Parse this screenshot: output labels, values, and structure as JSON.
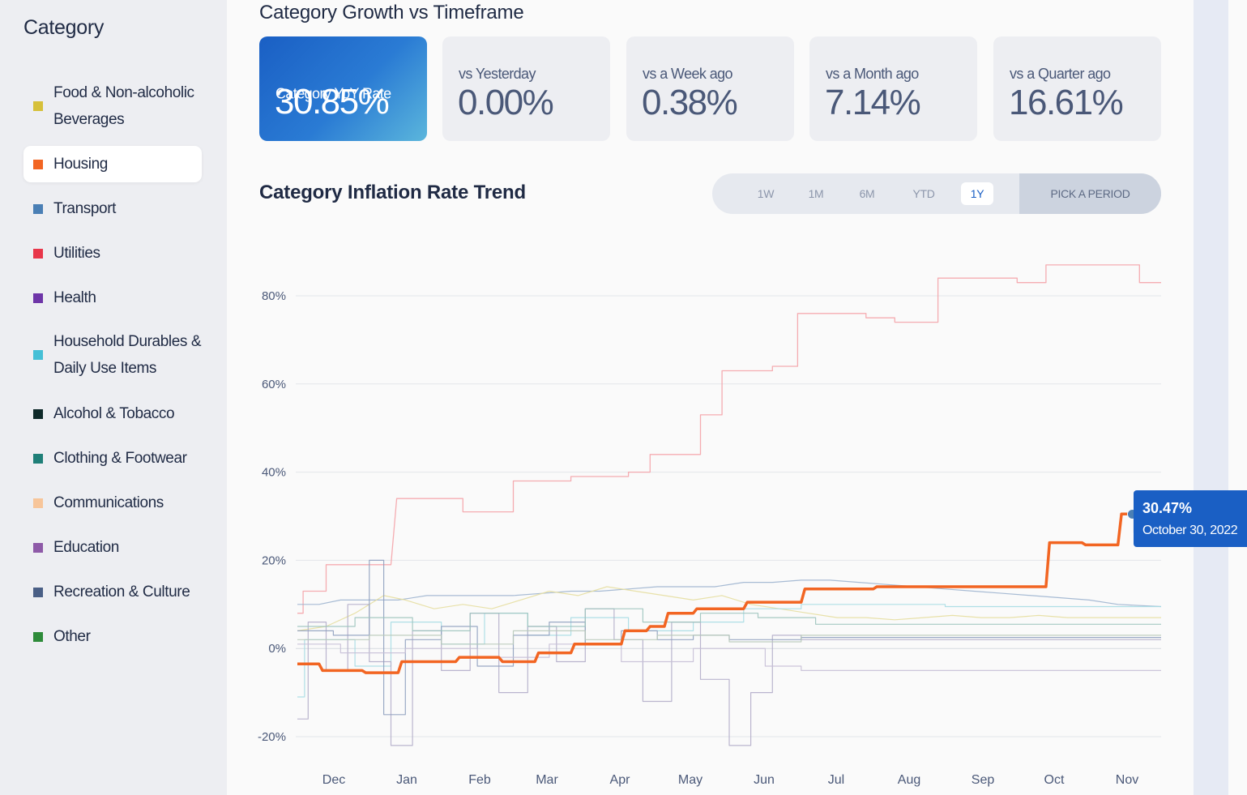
{
  "sidebar": {
    "title": "Category",
    "items": [
      {
        "label_line1": "Food & Non-alcoholic",
        "label_line2": "Beverages",
        "color": "#d6c03a"
      },
      {
        "label_line1": "Housing",
        "color": "#f26522",
        "active": true
      },
      {
        "label_line1": "Transport",
        "color": "#4a7fb5"
      },
      {
        "label_line1": "Utilities",
        "color": "#e8364a"
      },
      {
        "label_line1": "Health",
        "color": "#6e35a8"
      },
      {
        "label_line1": "Household Durables &",
        "label_line2": "Daily Use Items",
        "color": "#45bfd6"
      },
      {
        "label_line1": "Alcohol & Tobacco",
        "color": "#0f2a2a"
      },
      {
        "label_line1": "Clothing & Footwear",
        "color": "#1f7f78"
      },
      {
        "label_line1": "Communications",
        "color": "#f7c59a"
      },
      {
        "label_line1": "Education",
        "color": "#8e5aa8"
      },
      {
        "label_line1": "Recreation & Culture",
        "color": "#4a5f86"
      },
      {
        "label_line1": "Other",
        "color": "#2e8b3a"
      }
    ]
  },
  "header": {
    "title": "Category Growth vs Timeframe"
  },
  "cards": [
    {
      "label": "Category YoY Rate",
      "value": "30.85%"
    },
    {
      "label": "vs Yesterday",
      "value": "0.00%"
    },
    {
      "label": "vs a Week ago",
      "value": "0.38%"
    },
    {
      "label": "vs a Month ago",
      "value": "7.14%"
    },
    {
      "label": "vs a Quarter ago",
      "value": "16.61%"
    }
  ],
  "trend": {
    "title": "Category Inflation Rate Trend",
    "periods": [
      "1W",
      "1M",
      "6M",
      "YTD",
      "1Y"
    ],
    "selected_period": "1Y",
    "pick_label": "PICK A PERIOD"
  },
  "tooltip": {
    "value": "30.47%",
    "date": "October 30, 2022"
  },
  "colors": {
    "accent": "#1a5fc4",
    "housing": "#f26522",
    "utilities_line": "#f4a3a8"
  },
  "chart_data": {
    "type": "line",
    "title": "Category Inflation Rate Trend",
    "xlabel": "",
    "ylabel": "",
    "ylim": [
      -22,
      86
    ],
    "yticks": [
      -20,
      0,
      20,
      40,
      60,
      80
    ],
    "ytick_labels": [
      "-20%",
      "0%",
      "20%",
      "40%",
      "60%",
      "80%"
    ],
    "x_months": [
      "Dec",
      "Jan",
      "Feb",
      "Mar",
      "Apr",
      "May",
      "Jun",
      "Jul",
      "Aug",
      "Sep",
      "Oct",
      "Nov"
    ],
    "x_range": [
      0,
      12
    ],
    "series": [
      {
        "name": "Utilities",
        "color": "#f4a3a8",
        "width": 1.3,
        "x": [
          0,
          0.08,
          0.08,
          0.4,
          0.4,
          1.3,
          1.3,
          1.38,
          1.38,
          2.3,
          2.3,
          3.0,
          3.0,
          3.8,
          3.8,
          4.6,
          4.6,
          4.9,
          4.9,
          5.6,
          5.6,
          5.9,
          5.9,
          6.6,
          6.6,
          6.95,
          6.95,
          7.2,
          7.2,
          7.9,
          7.9,
          8.3,
          8.3,
          8.9,
          8.9,
          10.0,
          10.0,
          10.4,
          10.4,
          11.0,
          11.0,
          11.7,
          11.7,
          12.0
        ],
        "y": [
          8,
          8,
          13,
          13,
          19,
          19,
          19,
          34,
          34,
          34,
          31,
          31,
          38,
          38,
          39,
          39,
          40,
          40,
          44,
          44,
          53,
          53,
          63,
          63,
          64,
          64,
          76,
          76,
          76,
          76,
          75,
          75,
          74,
          74,
          84,
          84,
          83,
          83,
          87,
          87,
          87,
          87,
          83,
          83
        ]
      },
      {
        "name": "Housing",
        "color": "#f26522",
        "width": 3.5,
        "x": [
          0,
          0.3,
          0.35,
          0.9,
          0.95,
          1.4,
          1.45,
          2.2,
          2.25,
          2.8,
          2.85,
          3.3,
          3.35,
          3.8,
          3.85,
          4.5,
          4.55,
          4.85,
          4.9,
          5.1,
          5.15,
          5.5,
          5.55,
          6.2,
          6.25,
          7.0,
          7.05,
          8.0,
          8.05,
          9.0,
          9.05,
          10.4,
          10.45,
          10.9,
          10.95,
          11.4,
          11.45,
          11.7,
          11.75,
          12.0
        ],
        "y": [
          -3.5,
          -3.5,
          -5,
          -5,
          -5.5,
          -5.5,
          -3,
          -3,
          -2,
          -2,
          -3,
          -3,
          -1,
          -1,
          1,
          1,
          4,
          4,
          5,
          5,
          8,
          8,
          9,
          9,
          10.5,
          10.5,
          13.5,
          13.5,
          14,
          14,
          14,
          14,
          24,
          24,
          23.5,
          23.5,
          30.5,
          30.5,
          30.47,
          30.47
        ]
      },
      {
        "name": "Transport",
        "color": "#9db4cf",
        "width": 1.2,
        "x": [
          0,
          0.3,
          0.6,
          1.0,
          1.4,
          1.8,
          2.2,
          2.6,
          3.0,
          3.4,
          3.8,
          4.2,
          4.6,
          5.0,
          5.4,
          5.8,
          6.2,
          6.6,
          7.0,
          7.4,
          7.8,
          8.2,
          8.6,
          9.0,
          9.4,
          9.8,
          10.2,
          10.6,
          11.0,
          11.4,
          12.0
        ],
        "y": [
          10,
          10,
          11,
          11,
          11,
          12,
          12,
          12,
          12,
          12.5,
          13,
          13,
          13.5,
          14,
          14,
          14,
          15,
          15,
          15.5,
          15.5,
          15,
          14.5,
          14,
          13.5,
          13,
          12.5,
          12,
          11.5,
          11,
          10,
          9.5
        ]
      },
      {
        "name": "Food",
        "color": "#e6dea0",
        "width": 1.2,
        "x": [
          0,
          0.4,
          0.8,
          1.2,
          1.5,
          1.9,
          2.3,
          2.7,
          3.1,
          3.5,
          3.9,
          4.3,
          4.7,
          5.1,
          5.5,
          5.9,
          6.3,
          6.7,
          7.1,
          7.5,
          7.9,
          8.3,
          8.7,
          9.1,
          9.5,
          9.9,
          10.3,
          10.7,
          11.1,
          11.5,
          12.0
        ],
        "y": [
          4,
          5,
          8,
          12,
          11,
          9,
          10,
          9,
          11,
          13,
          12,
          14,
          13,
          12,
          11,
          12,
          10,
          9,
          8,
          7,
          7,
          6.5,
          7,
          7.5,
          7,
          7,
          7.5,
          7,
          7,
          7,
          7
        ]
      },
      {
        "name": "Household",
        "color": "#a6dbe3",
        "width": 1.2,
        "x": [
          0,
          0.1,
          0.1,
          0.8,
          0.8,
          1.3,
          1.3,
          2.0,
          2.0,
          2.6,
          2.6,
          3.2,
          3.2,
          3.8,
          3.8,
          4.6,
          4.6,
          5.5,
          5.5,
          6.2,
          6.2,
          7.0,
          7.0,
          8.0,
          8.0,
          9.0,
          9.0,
          12.0
        ],
        "y": [
          -11,
          -11,
          2,
          2,
          -4,
          -4,
          6,
          6,
          1,
          1,
          8,
          8,
          3,
          3,
          7,
          7,
          4,
          4,
          6,
          6,
          9,
          9,
          10,
          10,
          10,
          10,
          9.5,
          9.5
        ]
      },
      {
        "name": "Health",
        "color": "#b3adc9",
        "width": 1.2,
        "x": [
          0,
          0.15,
          0.15,
          0.4,
          0.4,
          0.7,
          0.7,
          1.0,
          1.0,
          1.3,
          1.3,
          1.6,
          1.6,
          2.0,
          2.0,
          2.4,
          2.4,
          2.8,
          2.8,
          3.2,
          3.2,
          3.6,
          3.6,
          4.0,
          4.0,
          4.4,
          4.4,
          4.8,
          4.8,
          5.2,
          5.2,
          5.6,
          5.6,
          6.0,
          6.0,
          6.3,
          6.3,
          6.6,
          6.6,
          7.0,
          7.0,
          12.0
        ],
        "y": [
          -16,
          -16,
          6,
          6,
          -5,
          -5,
          10,
          10,
          -3,
          -3,
          -22,
          -22,
          4,
          4,
          -5,
          -5,
          8,
          8,
          -10,
          -10,
          5,
          5,
          -3,
          -3,
          9,
          9,
          2,
          2,
          -12,
          -12,
          6,
          6,
          -7,
          -7,
          -22,
          -22,
          -10,
          -10,
          3,
          3,
          2,
          2
        ]
      },
      {
        "name": "Recreation",
        "color": "#8fa0bf",
        "width": 1.2,
        "x": [
          0,
          0.5,
          0.5,
          1.0,
          1.0,
          1.2,
          1.2,
          1.5,
          1.5,
          2.0,
          2.0,
          2.5,
          2.5,
          3.0,
          3.0,
          3.5,
          3.5,
          4.0,
          4.0,
          4.5,
          4.5,
          5.0,
          5.0,
          5.5,
          5.5,
          6.0,
          6.0,
          7.0,
          7.0,
          12.0
        ],
        "y": [
          4,
          4,
          3,
          3,
          20,
          20,
          -15,
          -15,
          2,
          2,
          5,
          5,
          -4,
          -4,
          3,
          3,
          6,
          6,
          1,
          1,
          4,
          4,
          2,
          2,
          3,
          3,
          2,
          2,
          2.5,
          2.5
        ]
      },
      {
        "name": "Education",
        "color": "#c7bfd6",
        "width": 1.2,
        "x": [
          0,
          0.6,
          0.6,
          1.5,
          1.5,
          2.5,
          2.5,
          3.5,
          3.5,
          4.5,
          4.5,
          5.5,
          5.5,
          6.5,
          6.5,
          7.0,
          7.0,
          12.0
        ],
        "y": [
          1,
          1,
          -1,
          -1,
          0,
          0,
          -2,
          -2,
          1,
          1,
          -3,
          -3,
          0,
          0,
          -4,
          -4,
          -5,
          -5
        ]
      },
      {
        "name": "Clothing",
        "color": "#9cc3bd",
        "width": 1.2,
        "x": [
          0,
          0.8,
          0.8,
          1.6,
          1.6,
          2.4,
          2.4,
          3.2,
          3.2,
          4.0,
          4.0,
          4.8,
          4.8,
          5.6,
          5.6,
          6.4,
          6.4,
          7.2,
          7.2,
          12.0
        ],
        "y": [
          5,
          5,
          7,
          7,
          4,
          4,
          8,
          8,
          5,
          5,
          9,
          9,
          6,
          6,
          8,
          8,
          7,
          7,
          5.5,
          5.5
        ]
      },
      {
        "name": "Other",
        "color": "#b8c9b9",
        "width": 1.2,
        "x": [
          0,
          1.0,
          1.0,
          2.0,
          2.0,
          3.0,
          3.0,
          4.0,
          4.0,
          5.0,
          5.0,
          6.0,
          6.0,
          7.0,
          7.0,
          12.0
        ],
        "y": [
          2,
          2,
          3,
          3,
          1,
          1,
          4,
          4,
          2,
          2,
          3,
          3,
          1.5,
          1.5,
          3,
          3
        ]
      }
    ],
    "highlight_point": {
      "x": 11.6,
      "y": 30.47
    }
  }
}
